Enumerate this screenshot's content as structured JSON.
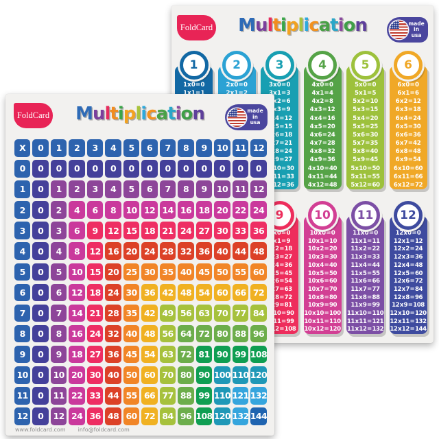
{
  "shared": {
    "brand": "FoldCard",
    "title_letters": [
      {
        "ch": "M",
        "color": "#2e6bb7"
      },
      {
        "ch": "u",
        "color": "#7b3f9c"
      },
      {
        "ch": "l",
        "color": "#e72c5e"
      },
      {
        "ch": "t",
        "color": "#f28c1f"
      },
      {
        "ch": "i",
        "color": "#3aa648"
      },
      {
        "ch": "p",
        "color": "#f2a21f"
      },
      {
        "ch": "l",
        "color": "#a8c33c"
      },
      {
        "ch": "i",
        "color": "#2da9dd"
      },
      {
        "ch": "c",
        "color": "#f2921f"
      },
      {
        "ch": "a",
        "color": "#49a146"
      },
      {
        "ch": "t",
        "color": "#2aa6c8"
      },
      {
        "ch": "i",
        "color": "#8a4a9e"
      },
      {
        "ch": "o",
        "color": "#3f9e47"
      },
      {
        "ch": "n",
        "color": "#5e3f9b"
      }
    ],
    "usa_badge_lines": [
      "made",
      "in",
      "usa"
    ]
  },
  "back_poster": {
    "rows": [
      {
        "offset": 0,
        "cards": [
          {
            "number": "1",
            "color": "#1268a4",
            "facts": [
              "1 x 0 = 0",
              "1 x 1 = 1"
            ]
          },
          {
            "number": "2",
            "color": "#2ba2d4",
            "facts": [
              "2 x 0 = 0",
              "2 x 1 = 2"
            ]
          },
          {
            "number": "3",
            "color": "#189fb2",
            "facts": [
              "3 x 0 = 0",
              "3 x 1 = 3",
              "3 x 2 = 6",
              "3 x 3 = 9",
              "3 x 4 = 12",
              "3 x 5 = 15",
              "3 x 6 = 18",
              "3 x 7 = 21",
              "3 x 8 = 24",
              "3 x 9 = 27",
              "3 x 10 = 30",
              "3 x 11 = 33",
              "3 x 12 = 36"
            ]
          },
          {
            "number": "4",
            "color": "#55a347",
            "facts": [
              "4 x 0 = 0",
              "4 x 1 = 4",
              "4 x 2 = 8",
              "4 x 3 = 12",
              "4 x 4 = 16",
              "4 x 5 = 20",
              "4 x 6 = 24",
              "4 x 7 = 28",
              "4 x 8 = 32",
              "4 x 9 = 36",
              "4 x 10 = 40",
              "4 x 11 = 44",
              "4 x 12 = 48"
            ]
          },
          {
            "number": "5",
            "color": "#9dc13c",
            "facts": [
              "5 x 0 = 0",
              "5 x 1 = 5",
              "5 x 2 = 10",
              "5 x 3 = 15",
              "5 x 4 = 20",
              "5 x 5 = 25",
              "5 x 6 = 30",
              "5 x 7 = 35",
              "5 x 8 = 40",
              "5 x 9 = 45",
              "5 x 10 = 50",
              "5 x 11 = 55",
              "5 x 12 = 60"
            ]
          },
          {
            "number": "6",
            "color": "#f0a827",
            "facts": [
              "6 x 0 = 0",
              "6 x 1 = 6",
              "6 x 2 = 12",
              "6 x 3 = 18",
              "6 x 4 = 24",
              "6 x 5 = 30",
              "6 x 6 = 36",
              "6 x 7 = 42",
              "6 x 8 = 48",
              "6 x 9 = 54",
              "6 x 10 = 60",
              "6 x 11 = 66",
              "6 x 12 = 72"
            ]
          }
        ]
      },
      {
        "offset": 2,
        "cards": [
          {
            "number": "9",
            "color": "#ee2d5c",
            "facts": [
              "9 x 0 = 0",
              "9 x 1 = 9",
              "9 x 2 = 18",
              "9 x 3 = 27",
              "9 x 4 = 36",
              "9 x 5 = 45",
              "9 x 6 = 54",
              "9 x 7 = 63",
              "9 x 8 = 72",
              "9 x 9 = 81",
              "9 x 10 = 90",
              "9 x 11 = 99",
              "9 x 12 = 108"
            ]
          },
          {
            "number": "10",
            "color": "#d23f94",
            "facts": [
              "10 x 0 = 0",
              "10 x 1 = 10",
              "10 x 2 = 20",
              "10 x 3 = 30",
              "10 x 4 = 40",
              "10 x 5 = 50",
              "10 x 6 = 60",
              "10 x 7 = 70",
              "10 x 8 = 80",
              "10 x 9 = 90",
              "10 x 10 = 100",
              "10 x 11 = 110",
              "10 x 12 = 120"
            ]
          },
          {
            "number": "11",
            "color": "#7c4fa5",
            "facts": [
              "11 x 0 = 0",
              "11 x 1 = 11",
              "11 x 2 = 22",
              "11 x 3 = 33",
              "11 x 4 = 44",
              "11 x 5 = 55",
              "11 x 6 = 66",
              "11 x 7 = 77",
              "11 x 8 = 88",
              "11 x 9 = 99",
              "11 x 10 = 110",
              "11 x 11 = 121",
              "11 x 12 = 132"
            ]
          },
          {
            "number": "12",
            "color": "#3e4b9f",
            "facts": [
              "12 x 0 = 0",
              "12 x 1 = 12",
              "12 x 2 = 24",
              "12 x 3 = 36",
              "12 x 4 = 48",
              "12 x 5 = 60",
              "12 x 6 = 72",
              "12 x 7 = 84",
              "12 x 8 = 96",
              "12 x 9 = 108",
              "12 x 10 = 120",
              "12 x 11 = 132",
              "12 x 12 = 144"
            ]
          }
        ]
      }
    ]
  },
  "front_poster": {
    "grid": {
      "corner": "X",
      "col_headers": [
        "0",
        "1",
        "2",
        "3",
        "4",
        "5",
        "6",
        "7",
        "8",
        "9",
        "10",
        "11",
        "12"
      ],
      "row_headers": [
        "0",
        "1",
        "2",
        "3",
        "4",
        "5",
        "6",
        "7",
        "8",
        "9",
        "10",
        "11",
        "12"
      ],
      "cells": [
        [
          0,
          0,
          0,
          0,
          0,
          0,
          0,
          0,
          0,
          0,
          0,
          0,
          0
        ],
        [
          0,
          1,
          2,
          3,
          4,
          5,
          6,
          7,
          8,
          9,
          10,
          11,
          12
        ],
        [
          0,
          2,
          4,
          6,
          8,
          10,
          12,
          14,
          16,
          18,
          20,
          22,
          24
        ],
        [
          0,
          3,
          6,
          9,
          12,
          15,
          18,
          21,
          24,
          27,
          30,
          33,
          36
        ],
        [
          0,
          4,
          8,
          12,
          16,
          20,
          24,
          28,
          32,
          36,
          40,
          44,
          48
        ],
        [
          0,
          5,
          10,
          15,
          20,
          25,
          30,
          35,
          40,
          45,
          50,
          55,
          60
        ],
        [
          0,
          6,
          12,
          18,
          24,
          30,
          36,
          42,
          48,
          54,
          60,
          66,
          72
        ],
        [
          0,
          7,
          14,
          21,
          28,
          35,
          42,
          49,
          56,
          63,
          70,
          77,
          84
        ],
        [
          0,
          8,
          16,
          24,
          32,
          40,
          48,
          56,
          64,
          72,
          80,
          88,
          96
        ],
        [
          0,
          9,
          18,
          27,
          36,
          45,
          54,
          63,
          72,
          81,
          90,
          99,
          108
        ],
        [
          0,
          10,
          20,
          30,
          40,
          50,
          60,
          70,
          80,
          90,
          100,
          110,
          120
        ],
        [
          0,
          11,
          22,
          33,
          44,
          55,
          66,
          77,
          88,
          99,
          110,
          121,
          132
        ],
        [
          0,
          12,
          24,
          36,
          48,
          60,
          72,
          84,
          96,
          108,
          120,
          132,
          144
        ]
      ],
      "header_color": "#2d63ae",
      "ring_colors": [
        "#44409a",
        "#8d4599",
        "#ca399c",
        "#ee2e63",
        "#dc4127",
        "#f18527",
        "#f0b122",
        "#a6c13c",
        "#6cad4b",
        "#0f9e52",
        "#1f98b7",
        "#35a5dd",
        "#1f64b0"
      ]
    },
    "footer": {
      "website": "www.foldcard.com",
      "email": "info@foldcard.com"
    }
  }
}
